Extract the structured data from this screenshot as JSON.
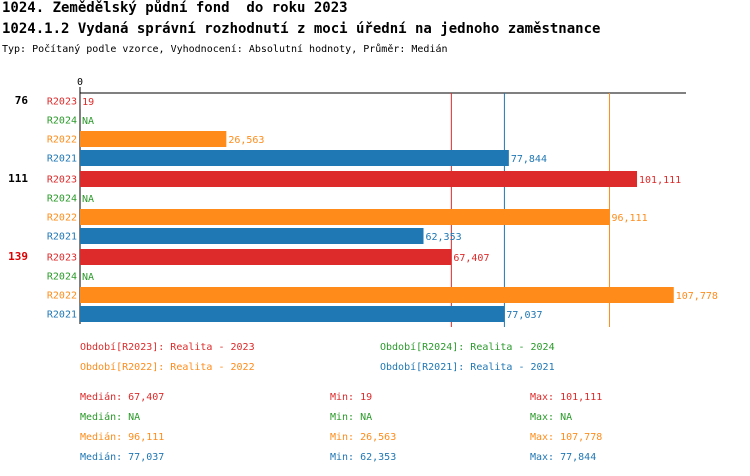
{
  "header": {
    "title": "1024. Zemědělský půdní fond  do roku 2023",
    "subtitle": "1024.1.2 Vydaná správní rozhodnutí z moci úřední na jednoho zaměstnance",
    "type_line": "Typ: Počítaný podle vzorce, Vyhodnocení: Absolutní hodnoty, Průměr: Medián"
  },
  "colors": {
    "R2023": "#dd2a2a",
    "R2024": "#2a9a2a",
    "R2022": "#ff8c1a",
    "R2021": "#1f77b4"
  },
  "chart_data": {
    "type": "bar",
    "orientation": "horizontal",
    "xlim": [
      0,
      110000
    ],
    "x_tick_labels": [
      "0"
    ],
    "groups": [
      {
        "label": "76",
        "highlight": false
      },
      {
        "label": "111",
        "highlight": false
      },
      {
        "label": "139",
        "highlight": true
      }
    ],
    "series": [
      {
        "name": "R2023",
        "values": [
          19,
          101111,
          67407
        ],
        "labels": [
          "19",
          "101,111",
          "67,407"
        ]
      },
      {
        "name": "R2024",
        "values": [
          null,
          null,
          null
        ],
        "labels": [
          "NA",
          "NA",
          "NA"
        ]
      },
      {
        "name": "R2022",
        "values": [
          26563,
          96111,
          107778
        ],
        "labels": [
          "26,563",
          "96,111",
          "107,778"
        ]
      },
      {
        "name": "R2021",
        "values": [
          77844,
          62353,
          77037
        ],
        "labels": [
          "77,844",
          "62,353",
          "77,037"
        ]
      }
    ],
    "median_lines": [
      {
        "series": "R2023",
        "value": 67407
      },
      {
        "series": "R2022",
        "value": 96111
      },
      {
        "series": "R2021",
        "value": 77037
      }
    ]
  },
  "legend": [
    {
      "series": "R2023",
      "text": "Období[R2023]: Realita - 2023"
    },
    {
      "series": "R2024",
      "text": "Období[R2024]: Realita - 2024"
    },
    {
      "series": "R2022",
      "text": "Období[R2022]: Realita - 2022"
    },
    {
      "series": "R2021",
      "text": "Období[R2021]: Realita - 2021"
    }
  ],
  "stats": [
    {
      "series": "R2023",
      "median": "Medián: 67,407",
      "min": "Min: 19",
      "max": "Max: 101,111"
    },
    {
      "series": "R2024",
      "median": "Medián: NA",
      "min": "Min: NA",
      "max": "Max: NA"
    },
    {
      "series": "R2022",
      "median": "Medián: 96,111",
      "min": "Min: 26,563",
      "max": "Max: 107,778"
    },
    {
      "series": "R2021",
      "median": "Medián: 77,037",
      "min": "Min: 62,353",
      "max": "Max: 77,844"
    }
  ]
}
